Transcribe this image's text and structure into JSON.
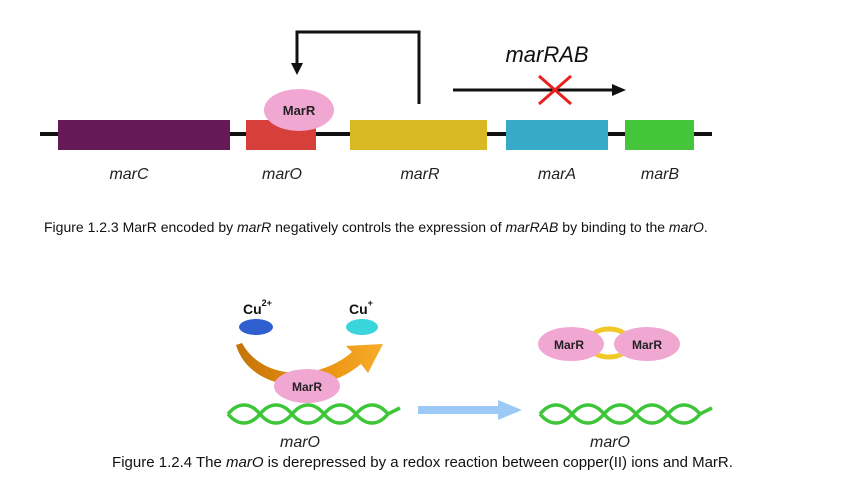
{
  "figure1": {
    "operon_label": "marRAB",
    "protein_label": "MarR",
    "genes": [
      {
        "id": "marC",
        "label": "marC",
        "color": "#651a57"
      },
      {
        "id": "marO",
        "label": "marO",
        "color": "#d7403a"
      },
      {
        "id": "marR",
        "label": "marR",
        "color": "#d8b823"
      },
      {
        "id": "marA",
        "label": "marA",
        "color": "#37aac8"
      },
      {
        "id": "marB",
        "label": "marB",
        "color": "#45c63a"
      }
    ],
    "caption": {
      "prefix": "Figure 1.2.3 MarR encoded by ",
      "em1": "marR",
      "mid1": " negatively controls the expression of ",
      "em2": "marRAB",
      "mid2": " by binding to the ",
      "em3": "marO",
      "suffix": "."
    }
  },
  "figure2": {
    "ion_left": {
      "symbol": "Cu",
      "charge": "2+",
      "color": "#2f5fcf"
    },
    "ion_right": {
      "symbol": "Cu",
      "charge": "+",
      "color": "#3ad5dc"
    },
    "protein_label": "MarR",
    "dimer_left_label": "MarR",
    "dimer_right_label": "MarR",
    "dna_left_label": "marO",
    "dna_right_label": "marO",
    "caption": {
      "prefix": "Figure 1.2.4 The ",
      "em1": "marO",
      "suffix": " is derepressed by a redox reaction between copper(II) ions and MarR."
    }
  },
  "colors": {
    "protein_pink": "#f0a7d2",
    "dna_green": "#3ec63a",
    "link_yellow": "#f0c829",
    "arrow_blue": "#9cc9f5",
    "arrow_orange": "#f3a11f",
    "arrow_orange_dark": "#c7790a",
    "block_x_red": "#e8211e"
  }
}
